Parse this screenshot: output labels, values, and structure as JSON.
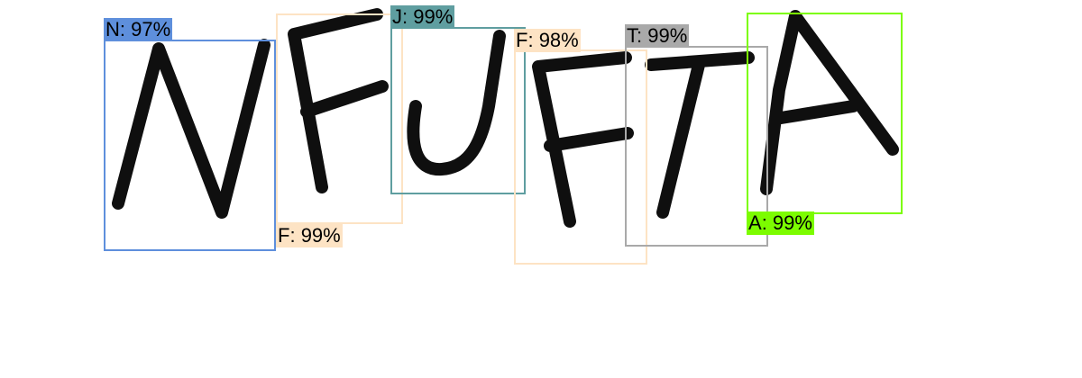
{
  "detections": [
    {
      "label": "N",
      "score": "97%",
      "color": "#5e8fdc"
    },
    {
      "label": "F",
      "score": "99%",
      "color": "#fde3c4"
    },
    {
      "label": "J",
      "score": "99%",
      "color": "#5f9ea0"
    },
    {
      "label": "F",
      "score": "98%",
      "color": "#fde3c4"
    },
    {
      "label": "T",
      "score": "99%",
      "color": "#a9a9a9"
    },
    {
      "label": "A",
      "score": "99%",
      "color": "#7cfc00"
    }
  ],
  "separator": ": "
}
